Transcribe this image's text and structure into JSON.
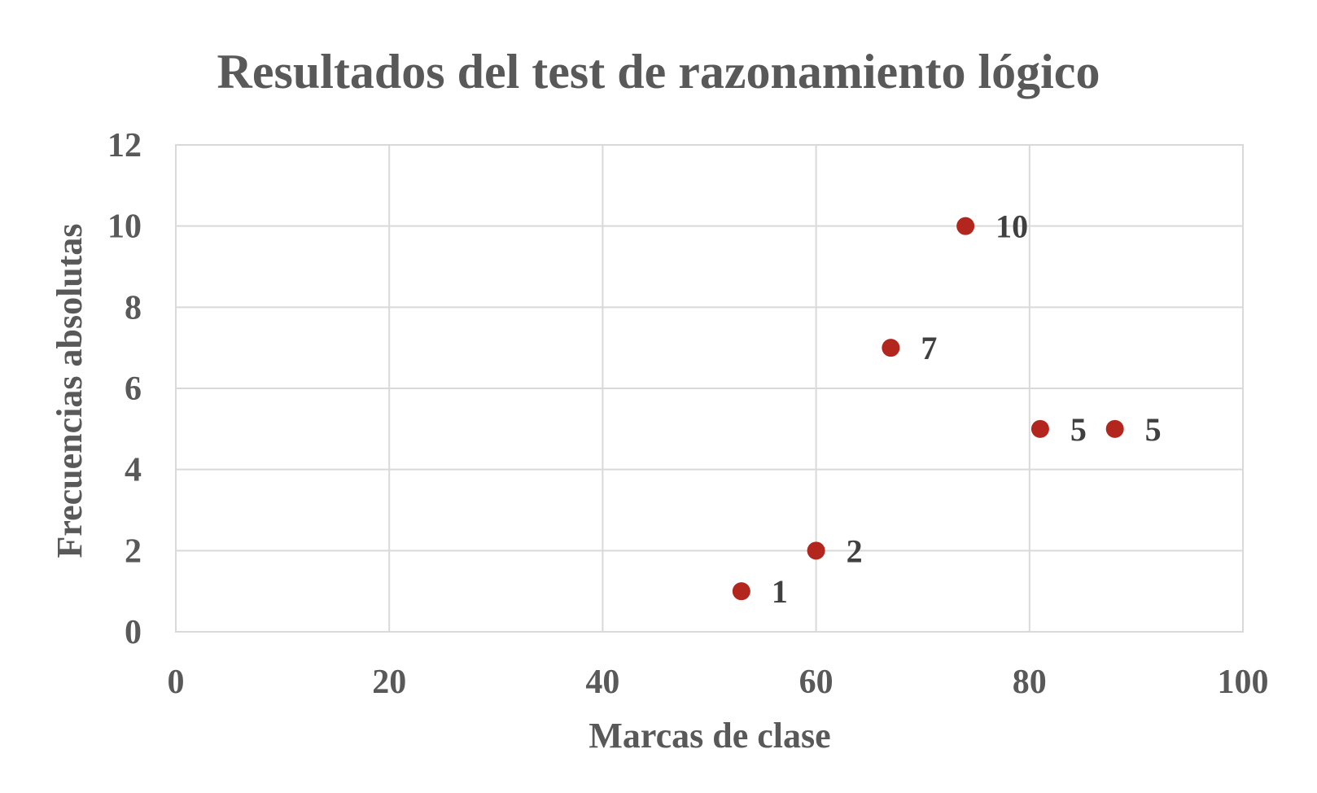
{
  "chart_data": {
    "type": "scatter",
    "title": "Resultados del test de razonamiento lógico",
    "xlabel": "Marcas de clase",
    "ylabel": "Frecuencias absolutas",
    "xlim": [
      0,
      100
    ],
    "ylim": [
      0,
      12
    ],
    "x_ticks": [
      0,
      20,
      40,
      60,
      80,
      100
    ],
    "y_ticks": [
      0,
      2,
      4,
      6,
      8,
      10,
      12
    ],
    "grid": true,
    "legend": "none",
    "marker_color": "#B3261E",
    "series": [
      {
        "x": [
          53,
          60,
          67,
          74,
          81,
          88
        ],
        "y": [
          1,
          2,
          7,
          10,
          5,
          5
        ],
        "data_labels": [
          "1",
          "2",
          "7",
          "10",
          "5",
          "5"
        ]
      }
    ]
  }
}
